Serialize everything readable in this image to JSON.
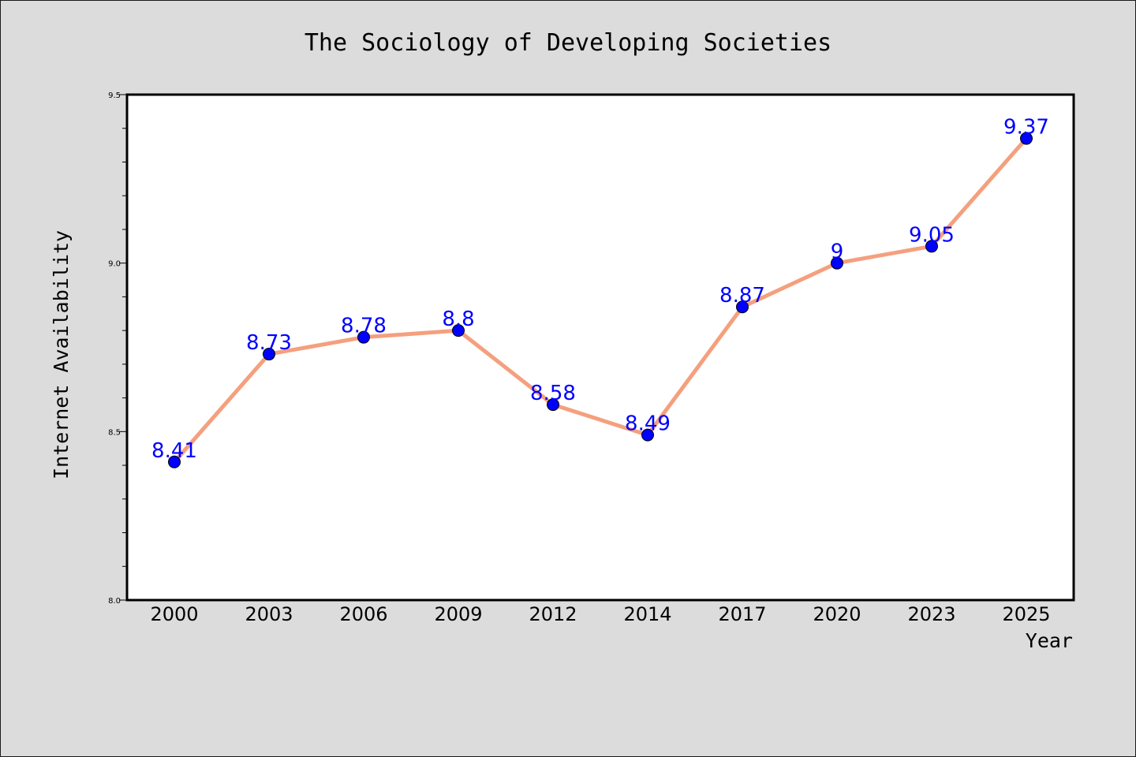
{
  "colors": {
    "figure_background": "#dcdcdc",
    "plot_background": "#ffffff",
    "line": "#f4a07e",
    "marker": "#0000ff",
    "data_label": "#0000ff",
    "axis": "#000000"
  },
  "chart_data": {
    "type": "line",
    "title": "The Sociology of Developing Societies",
    "xlabel": "Year",
    "ylabel": "Internet Availability",
    "categories": [
      "2000",
      "2003",
      "2006",
      "2009",
      "2012",
      "2014",
      "2017",
      "2020",
      "2023",
      "2025"
    ],
    "series": [
      {
        "values": [
          8.41,
          8.73,
          8.78,
          8.8,
          8.58,
          8.49,
          8.87,
          9.0,
          9.05,
          9.37
        ],
        "data_labels": [
          "8.41",
          "8.73",
          "8.78",
          "8.8",
          "8.58",
          "8.49",
          "8.87",
          "9",
          "9.05",
          "9.37"
        ],
        "marker": "circle"
      }
    ],
    "ylim": [
      8.0,
      9.5
    ],
    "yticks": [
      {
        "value": 8.0,
        "label": "8.0"
      },
      {
        "value": 8.5,
        "label": "8.5"
      },
      {
        "value": 9.0,
        "label": "9.0"
      },
      {
        "value": 9.5,
        "label": "9.5"
      }
    ],
    "minor_ytick_step": 0.1,
    "grid": false,
    "legend": "none"
  }
}
